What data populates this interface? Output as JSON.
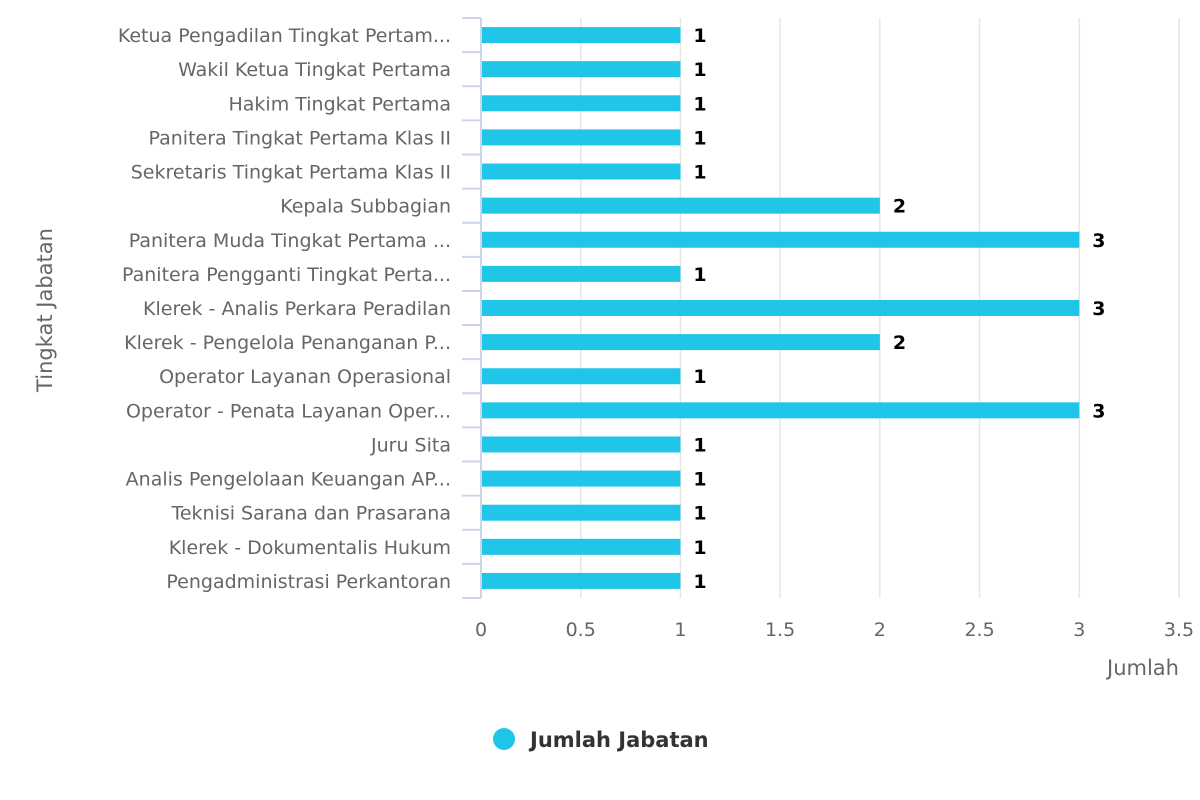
{
  "chart_data": {
    "type": "bar",
    "orientation": "horizontal",
    "title": "",
    "xlabel": "Jumlah",
    "ylabel": "Tingkat Jabatan",
    "xlim": [
      0,
      3.5
    ],
    "x_ticks": [
      "0",
      "0.5",
      "1",
      "1.5",
      "2",
      "2.5",
      "3",
      "3.5"
    ],
    "grid": true,
    "legend_position": "bottom-center",
    "categories": [
      "Ketua Pengadilan Tingkat Pertam...",
      "Wakil Ketua Tingkat Pertama",
      "Hakim Tingkat Pertama",
      "Panitera Tingkat Pertama Klas II",
      "Sekretaris Tingkat Pertama Klas II",
      "Kepala Subbagian",
      "Panitera Muda Tingkat Pertama ...",
      "Panitera Pengganti Tingkat Perta...",
      "Klerek - Analis Perkara Peradilan",
      "Klerek - Pengelola Penanganan P...",
      "Operator Layanan Operasional",
      "Operator - Penata Layanan Oper...",
      "Juru Sita",
      "Analis Pengelolaan Keuangan AP...",
      "Teknisi Sarana dan Prasarana",
      "Klerek - Dokumentalis Hukum",
      "Pengadministrasi Perkantoran"
    ],
    "series": [
      {
        "name": "Jumlah Jabatan",
        "color": "#20C6E8",
        "values": [
          1,
          1,
          1,
          1,
          1,
          2,
          3,
          1,
          3,
          2,
          1,
          3,
          1,
          1,
          1,
          1,
          1
        ]
      }
    ]
  }
}
